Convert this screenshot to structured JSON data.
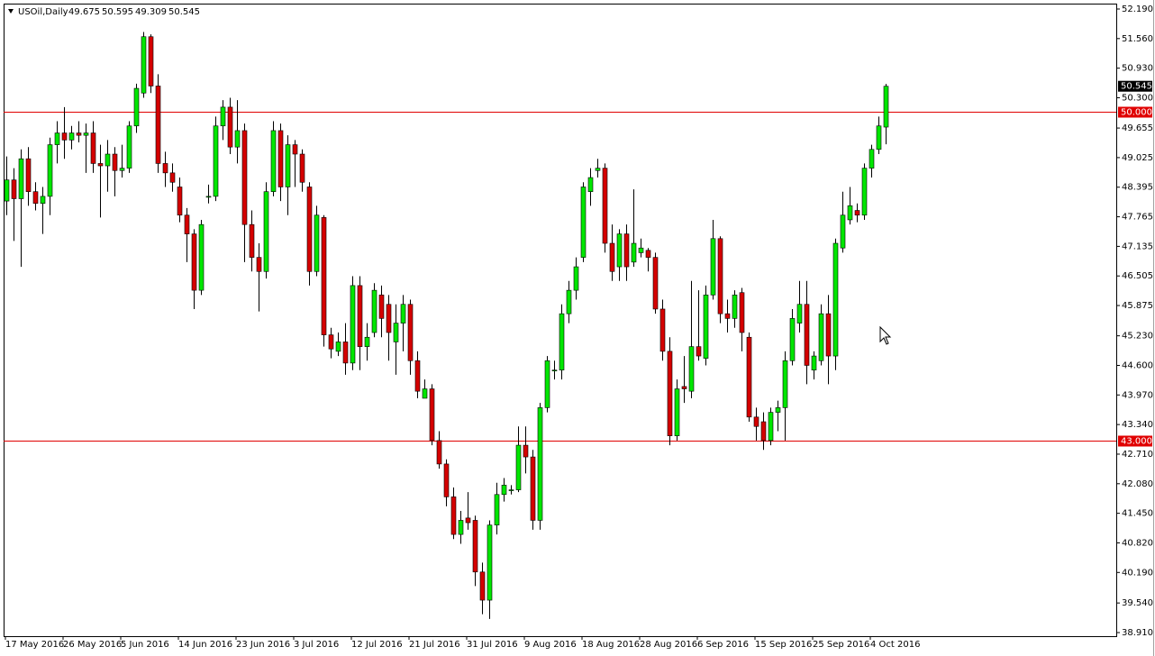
{
  "chart_data": {
    "type": "candlestick",
    "title": "USOil,Daily",
    "header_values": [
      49.675,
      50.595,
      49.309,
      50.545
    ],
    "categories": [
      "17 May 2016",
      null,
      null,
      null,
      null,
      null,
      null,
      null,
      "26 May 2016",
      null,
      null,
      null,
      null,
      null,
      null,
      null,
      "5 Jun 2016",
      null,
      null,
      null,
      null,
      null,
      null,
      null,
      "14 Jun 2016",
      null,
      null,
      null,
      null,
      null,
      null,
      null,
      "23 Jun 2016",
      null,
      null,
      null,
      null,
      null,
      null,
      null,
      "3 Jul 2016",
      null,
      null,
      null,
      null,
      null,
      null,
      null,
      "12 Jul 2016",
      null,
      null,
      null,
      null,
      null,
      null,
      null,
      "21 Jul 2016",
      null,
      null,
      null,
      null,
      null,
      null,
      null,
      "31 Jul 2016",
      null,
      null,
      null,
      null,
      null,
      null,
      null,
      "9 Aug 2016",
      null,
      null,
      null,
      null,
      null,
      null,
      null,
      "18 Aug 2016",
      null,
      null,
      null,
      null,
      null,
      null,
      null,
      "28 Aug 2016",
      null,
      null,
      null,
      null,
      null,
      null,
      null,
      "6 Sep 2016",
      null,
      null,
      null,
      null,
      null,
      null,
      null,
      "15 Sep 2016",
      null,
      null,
      null,
      null,
      null,
      null,
      null,
      "25 Sep 2016",
      null,
      null,
      null,
      null,
      null,
      null,
      null,
      "4 Oct 2016",
      null,
      null
    ],
    "open": [
      48.1,
      48.55,
      48.15,
      49.0,
      48.3,
      48.05,
      48.2,
      49.3,
      49.55,
      49.4,
      49.55,
      49.5,
      49.55,
      48.9,
      48.85,
      49.1,
      48.75,
      48.8,
      49.7,
      50.4,
      51.6,
      50.55,
      48.9,
      48.7,
      48.4,
      47.8,
      47.4,
      46.2,
      48.2,
      48.2,
      49.7,
      50.1,
      49.25,
      49.6,
      47.6,
      46.9,
      46.6,
      48.3,
      49.6,
      48.4,
      49.3,
      49.1,
      48.4,
      46.6,
      47.75,
      45.25,
      44.9,
      45.1,
      44.65,
      46.3,
      45.0,
      45.3,
      46.1,
      45.9,
      45.1,
      45.5,
      45.9,
      44.7,
      43.9,
      44.1,
      43.0,
      42.5,
      41.8,
      41.0,
      41.35,
      41.3,
      40.2,
      39.6,
      41.2,
      41.85,
      41.95,
      41.95,
      42.9,
      42.65,
      41.3,
      43.7,
      44.5,
      44.5,
      45.7,
      46.2,
      46.9,
      48.3,
      48.75,
      48.8,
      47.2,
      46.7,
      47.4,
      46.8,
      47.0,
      47.05,
      46.9,
      45.8,
      44.9,
      43.1,
      44.15,
      44.05,
      45.0,
      44.75,
      46.1,
      47.3,
      45.7,
      45.6,
      46.15,
      45.2,
      43.5,
      43.4,
      43.0,
      43.6,
      43.7,
      44.7,
      45.5,
      45.9,
      44.5,
      44.7,
      45.7,
      44.8,
      47.1,
      47.7,
      47.9,
      47.8,
      48.8,
      49.2,
      49.675
    ],
    "high": [
      49.05,
      48.8,
      49.2,
      49.25,
      48.5,
      48.4,
      49.45,
      49.8,
      50.1,
      49.7,
      49.8,
      49.75,
      49.8,
      49.3,
      49.4,
      49.25,
      49.3,
      49.8,
      50.6,
      51.7,
      51.65,
      50.8,
      49.15,
      48.9,
      48.6,
      47.95,
      47.5,
      47.7,
      48.45,
      49.9,
      50.25,
      50.3,
      50.25,
      49.75,
      47.9,
      47.2,
      48.5,
      49.8,
      49.75,
      49.5,
      49.4,
      49.2,
      48.5,
      48.0,
      47.8,
      45.4,
      45.3,
      45.5,
      46.5,
      46.5,
      45.5,
      46.35,
      46.3,
      46.1,
      45.9,
      46.1,
      46.0,
      44.9,
      44.3,
      44.2,
      43.2,
      42.6,
      42.0,
      41.5,
      41.9,
      41.4,
      40.4,
      41.3,
      42.1,
      42.2,
      42.05,
      43.3,
      43.3,
      42.8,
      43.8,
      44.8,
      44.7,
      45.9,
      46.4,
      46.9,
      48.5,
      48.8,
      49.0,
      48.9,
      47.6,
      47.5,
      47.6,
      48.35,
      47.3,
      47.1,
      47.0,
      46.0,
      45.2,
      44.3,
      44.8,
      46.4,
      46.2,
      46.3,
      47.7,
      47.35,
      46.0,
      46.2,
      46.25,
      45.3,
      43.7,
      43.6,
      43.7,
      43.85,
      44.9,
      45.8,
      46.4,
      46.4,
      44.9,
      45.9,
      46.1,
      47.3,
      48.3,
      48.4,
      48.05,
      48.9,
      49.3,
      49.9,
      50.595
    ],
    "low": [
      47.8,
      47.25,
      46.7,
      48.0,
      47.9,
      47.4,
      47.8,
      48.9,
      49.0,
      49.2,
      49.35,
      48.7,
      48.7,
      47.75,
      48.3,
      48.2,
      48.6,
      48.7,
      49.55,
      50.3,
      50.4,
      48.7,
      48.4,
      48.3,
      47.65,
      46.8,
      45.8,
      46.1,
      48.05,
      48.1,
      49.4,
      49.1,
      48.9,
      46.8,
      46.6,
      45.75,
      46.45,
      48.2,
      48.1,
      47.8,
      48.4,
      48.3,
      46.3,
      46.5,
      45.0,
      44.75,
      44.8,
      44.4,
      44.5,
      44.5,
      44.7,
      45.2,
      45.2,
      44.7,
      44.4,
      44.9,
      44.4,
      43.9,
      43.9,
      42.9,
      42.4,
      41.6,
      40.9,
      40.8,
      41.1,
      39.9,
      39.3,
      39.2,
      41.0,
      41.7,
      41.85,
      41.9,
      42.3,
      41.1,
      41.1,
      43.6,
      44.3,
      44.3,
      45.5,
      46.0,
      46.8,
      48.0,
      48.6,
      47.0,
      46.4,
      46.4,
      46.4,
      46.7,
      46.9,
      46.6,
      45.7,
      44.7,
      42.9,
      43.0,
      43.8,
      43.9,
      44.7,
      44.6,
      46.0,
      45.5,
      45.3,
      45.4,
      44.9,
      43.4,
      43.0,
      42.8,
      42.9,
      43.2,
      43.0,
      44.6,
      45.3,
      44.2,
      44.3,
      44.6,
      44.2,
      44.5,
      47.0,
      47.6,
      47.65,
      47.7,
      48.6,
      49.1,
      49.309
    ],
    "close": [
      48.55,
      48.15,
      49.0,
      48.3,
      48.05,
      48.2,
      49.3,
      49.55,
      49.4,
      49.55,
      49.5,
      49.55,
      48.9,
      48.85,
      49.1,
      48.75,
      48.8,
      49.7,
      50.5,
      51.6,
      50.55,
      48.9,
      48.7,
      48.5,
      47.8,
      47.4,
      46.2,
      47.6,
      48.2,
      49.7,
      50.1,
      49.25,
      49.6,
      47.6,
      46.9,
      46.6,
      48.3,
      49.6,
      48.4,
      49.3,
      49.1,
      48.5,
      46.6,
      47.8,
      45.25,
      44.95,
      45.1,
      44.65,
      46.3,
      45.0,
      45.2,
      46.2,
      45.6,
      45.3,
      45.5,
      45.9,
      44.7,
      44.05,
      44.1,
      43.0,
      42.5,
      41.8,
      41.0,
      41.3,
      41.25,
      40.2,
      39.6,
      41.2,
      41.85,
      42.05,
      41.95,
      42.9,
      42.65,
      41.3,
      43.7,
      44.7,
      44.5,
      45.7,
      46.2,
      46.7,
      48.4,
      48.6,
      48.8,
      47.2,
      46.6,
      47.4,
      46.7,
      47.2,
      47.1,
      46.9,
      45.8,
      44.9,
      43.1,
      44.1,
      44.1,
      45.0,
      44.8,
      46.1,
      47.3,
      45.7,
      45.6,
      46.1,
      45.3,
      43.5,
      43.3,
      43.0,
      43.6,
      43.7,
      44.7,
      45.6,
      45.9,
      44.6,
      44.8,
      45.7,
      44.8,
      47.2,
      47.8,
      48.0,
      47.8,
      48.8,
      49.2,
      49.7,
      50.545
    ],
    "up_color": "#00e600",
    "down_color": "#d40000",
    "ylim": [
      38.833,
      52.305
    ],
    "yticks": [
      {
        "value": 52.19,
        "label": "52.190"
      },
      {
        "value": 51.56,
        "label": "51.560"
      },
      {
        "value": 50.93,
        "label": "50.930"
      },
      {
        "value": 50.3,
        "label": "50.300"
      },
      {
        "value": 49.655,
        "label": "49.655"
      },
      {
        "value": 49.025,
        "label": "49.025"
      },
      {
        "value": 48.395,
        "label": "48.395"
      },
      {
        "value": 47.765,
        "label": "47.765"
      },
      {
        "value": 47.135,
        "label": "47.135"
      },
      {
        "value": 46.505,
        "label": "46.505"
      },
      {
        "value": 45.875,
        "label": "45.875"
      },
      {
        "value": 45.23,
        "label": "45.230"
      },
      {
        "value": 44.6,
        "label": "44.600"
      },
      {
        "value": 43.97,
        "label": "43.970"
      },
      {
        "value": 43.34,
        "label": "43.340"
      },
      {
        "value": 42.71,
        "label": "42.710"
      },
      {
        "value": 42.08,
        "label": "42.080"
      },
      {
        "value": 41.45,
        "label": "41.450"
      },
      {
        "value": 40.82,
        "label": "40.820"
      },
      {
        "value": 40.19,
        "label": "40.190"
      },
      {
        "value": 39.54,
        "label": "39.540"
      },
      {
        "value": 38.91,
        "label": "38.910"
      }
    ],
    "hlines": [
      {
        "value": 50,
        "label": "50.000"
      },
      {
        "value": 43,
        "label": "43.000"
      }
    ],
    "hline_color": "#e00000",
    "price_label": {
      "value": 50.545,
      "label": "50.545"
    }
  }
}
